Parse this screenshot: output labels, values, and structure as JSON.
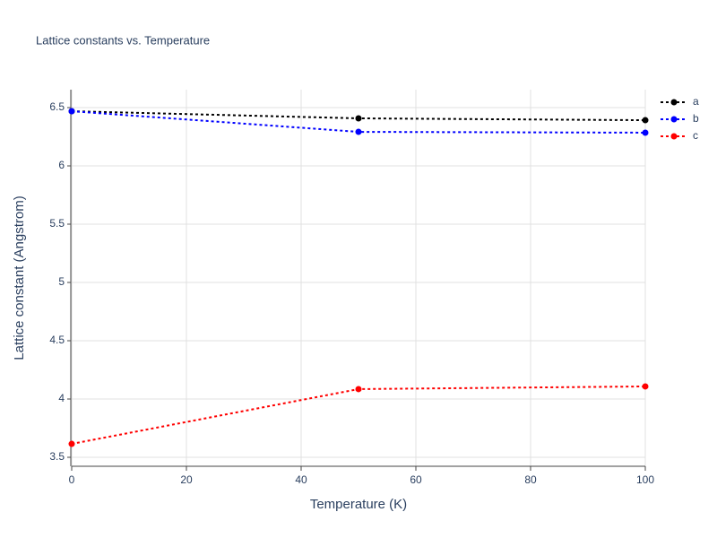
{
  "chart_data": {
    "type": "line",
    "title": "Lattice constants vs. Temperature",
    "x_label": "Temperature (K)",
    "y_label": "Lattice constant (Angstrom)",
    "x": [
      0,
      50,
      100
    ],
    "series": [
      {
        "name": "a",
        "color": "#000000",
        "values": [
          6.469,
          6.408,
          6.392
        ]
      },
      {
        "name": "b",
        "color": "#0000ff",
        "values": [
          6.469,
          6.292,
          6.285
        ]
      },
      {
        "name": "c",
        "color": "#ff0000",
        "values": [
          3.615,
          4.085,
          4.108
        ]
      }
    ],
    "xlim": [
      0,
      100
    ],
    "xticks": [
      0,
      20,
      40,
      60,
      80,
      100
    ],
    "ylim": [
      3.423,
      6.654
    ],
    "yticks": [
      3.5,
      4,
      4.5,
      5,
      5.5,
      6,
      6.5
    ],
    "grid": true,
    "legend": "top-right"
  }
}
